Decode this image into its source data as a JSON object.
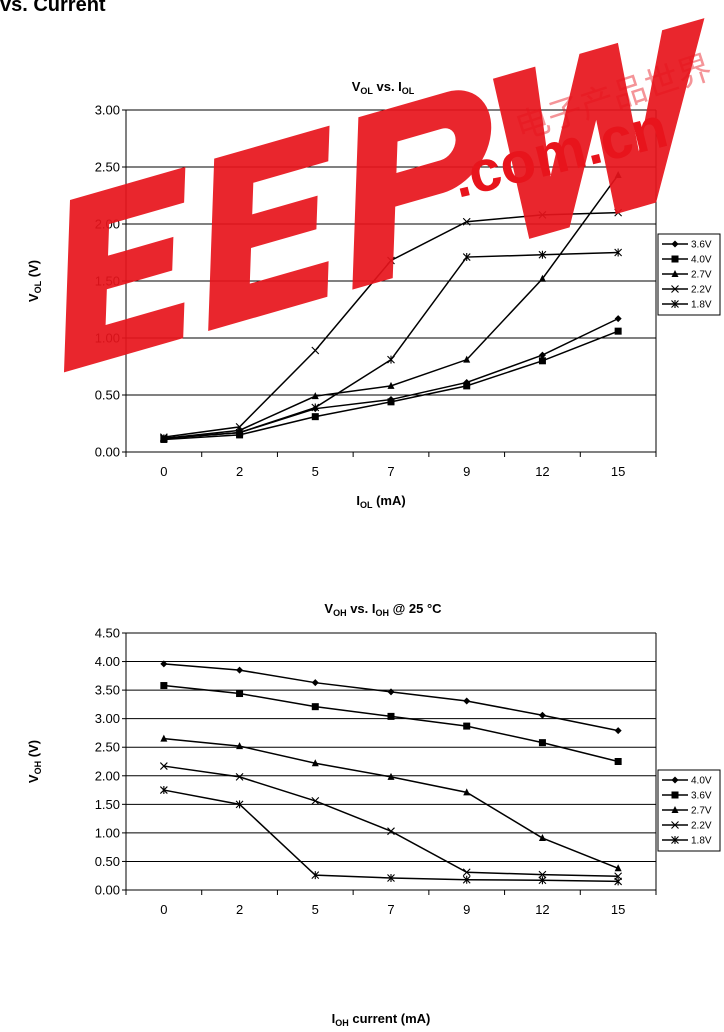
{
  "page": {
    "header": "vs. Current"
  },
  "watermark": {
    "brand": "EEPW",
    "domain": ".com.cn",
    "chinese": "电子产品世界",
    "color": "#e8141c"
  },
  "chart_data": [
    {
      "type": "line",
      "title": {
        "main": "V",
        "main_sub": "OL",
        "mid": " vs. I",
        "mid_sub": "OL",
        "tail": ""
      },
      "xlabel": {
        "main": "I",
        "sub": "OL",
        "tail": " (mA)"
      },
      "ylabel": {
        "main": "V",
        "sub": "OL",
        "tail": " (V)"
      },
      "categories": [
        "0",
        "2",
        "5",
        "7",
        "9",
        "12",
        "15"
      ],
      "ylim": [
        0,
        3
      ],
      "yticks": [
        "0.00",
        "0.50",
        "1.00",
        "1.50",
        "2.00",
        "2.50",
        "3.00"
      ],
      "grid": true,
      "legend_position": "right",
      "series": [
        {
          "name": "3.6V",
          "marker": "diamond",
          "values": [
            0.12,
            0.17,
            0.38,
            0.46,
            0.61,
            0.85,
            1.17
          ]
        },
        {
          "name": "4.0V",
          "marker": "square",
          "values": [
            0.11,
            0.15,
            0.31,
            0.44,
            0.58,
            0.8,
            1.06
          ]
        },
        {
          "name": "2.7V",
          "marker": "triangle",
          "values": [
            0.12,
            0.19,
            0.49,
            0.58,
            0.81,
            1.52,
            2.43
          ]
        },
        {
          "name": "2.2V",
          "marker": "x",
          "values": [
            0.13,
            0.22,
            0.89,
            1.68,
            2.02,
            2.08,
            2.1
          ]
        },
        {
          "name": "1.8V",
          "marker": "star",
          "values": [
            0.12,
            0.17,
            0.39,
            0.81,
            1.71,
            1.73,
            1.75
          ]
        }
      ]
    },
    {
      "type": "line",
      "title": {
        "main": "V",
        "main_sub": "OH",
        "mid": " vs. I",
        "mid_sub": "OH",
        "tail": " @ 25 °C"
      },
      "xlabel": {
        "main": "I",
        "sub": "OH",
        "tail": " current (mA)"
      },
      "ylabel": {
        "main": "V",
        "sub": "OH",
        "tail": " (V)"
      },
      "categories": [
        "0",
        "2",
        "5",
        "7",
        "9",
        "12",
        "15"
      ],
      "ylim": [
        0,
        4.5
      ],
      "yticks": [
        "0.00",
        "0.50",
        "1.00",
        "1.50",
        "2.00",
        "2.50",
        "3.00",
        "3.50",
        "4.00",
        "4.50"
      ],
      "grid": true,
      "legend_position": "right",
      "series": [
        {
          "name": "4.0V",
          "marker": "diamond",
          "values": [
            3.96,
            3.85,
            3.63,
            3.47,
            3.31,
            3.06,
            2.79
          ]
        },
        {
          "name": "3.6V",
          "marker": "square",
          "values": [
            3.58,
            3.44,
            3.21,
            3.04,
            2.87,
            2.58,
            2.25
          ]
        },
        {
          "name": "2.7V",
          "marker": "triangle",
          "values": [
            2.65,
            2.52,
            2.22,
            1.98,
            1.71,
            0.91,
            0.38
          ]
        },
        {
          "name": "2.2V",
          "marker": "x",
          "values": [
            2.17,
            1.98,
            1.56,
            1.03,
            0.31,
            0.27,
            0.24
          ]
        },
        {
          "name": "1.8V",
          "marker": "star",
          "values": [
            1.75,
            1.5,
            0.26,
            0.21,
            0.18,
            0.17,
            0.15
          ]
        }
      ]
    }
  ]
}
